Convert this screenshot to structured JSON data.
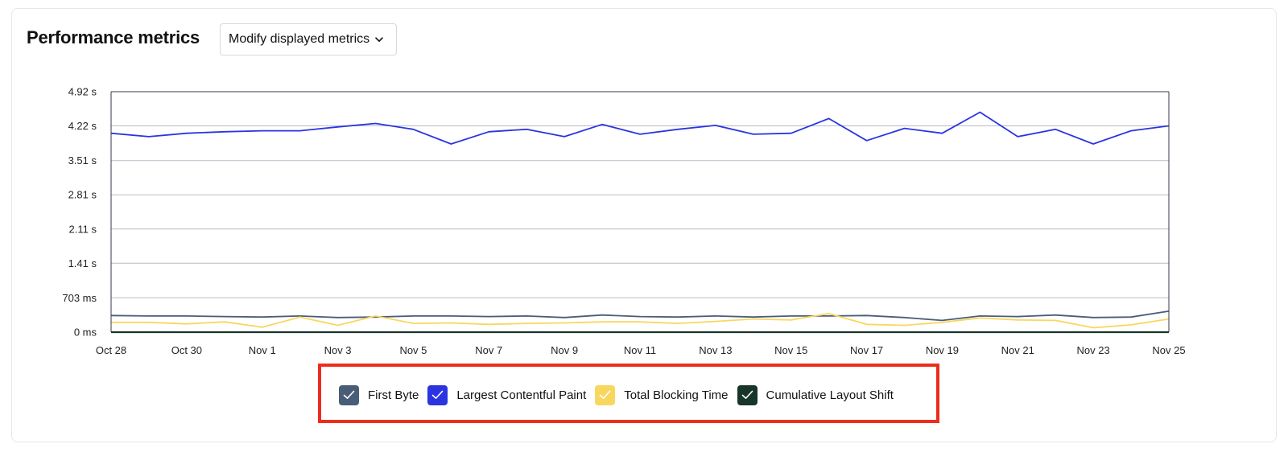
{
  "header": {
    "title": "Performance metrics",
    "modify_button": "Modify displayed metrics"
  },
  "legend": {
    "items": [
      {
        "label": "First Byte",
        "color": "#4a5d78",
        "checked": true,
        "icon": "check-icon"
      },
      {
        "label": "Largest Contentful Paint",
        "color": "#2b34e0",
        "checked": true,
        "icon": "check-icon"
      },
      {
        "label": "Total Blocking Time",
        "color": "#f9d75e",
        "checked": true,
        "icon": "check-icon"
      },
      {
        "label": "Cumulative Layout Shift",
        "color": "#19352a",
        "checked": true,
        "icon": "check-icon"
      }
    ]
  },
  "chart_data": {
    "type": "line",
    "ylim": [
      0,
      4.92
    ],
    "ytick_labels": [
      "0 ms",
      "703 ms",
      "1.41 s",
      "2.11 s",
      "2.81 s",
      "3.51 s",
      "4.22 s",
      "4.92 s"
    ],
    "ytick_values": [
      0,
      0.703,
      1.41,
      2.11,
      2.81,
      3.51,
      4.22,
      4.92
    ],
    "x": [
      "Oct 28",
      "Oct 29",
      "Oct 30",
      "Oct 31",
      "Nov 1",
      "Nov 2",
      "Nov 3",
      "Nov 4",
      "Nov 5",
      "Nov 6",
      "Nov 7",
      "Nov 8",
      "Nov 9",
      "Nov 10",
      "Nov 11",
      "Nov 12",
      "Nov 13",
      "Nov 14",
      "Nov 15",
      "Nov 16",
      "Nov 17",
      "Nov 18",
      "Nov 19",
      "Nov 20",
      "Nov 21",
      "Nov 22",
      "Nov 23",
      "Nov 24",
      "Nov 25"
    ],
    "xtick_labels": [
      "Oct 28",
      "Oct 30",
      "Nov 1",
      "Nov 3",
      "Nov 5",
      "Nov 7",
      "Nov 9",
      "Nov 11",
      "Nov 13",
      "Nov 15",
      "Nov 17",
      "Nov 19",
      "Nov 21",
      "Nov 23",
      "Nov 25"
    ],
    "grid": true,
    "series": [
      {
        "name": "First Byte",
        "color": "#4a5d78",
        "values": [
          0.34,
          0.33,
          0.33,
          0.32,
          0.31,
          0.33,
          0.3,
          0.31,
          0.33,
          0.33,
          0.32,
          0.33,
          0.3,
          0.35,
          0.32,
          0.31,
          0.33,
          0.31,
          0.33,
          0.33,
          0.34,
          0.3,
          0.24,
          0.33,
          0.32,
          0.35,
          0.3,
          0.31,
          0.43
        ]
      },
      {
        "name": "Largest Contentful Paint",
        "color": "#2b34e0",
        "values": [
          4.07,
          4.0,
          4.07,
          4.1,
          4.12,
          4.12,
          4.2,
          4.27,
          4.15,
          3.85,
          4.1,
          4.15,
          4.0,
          4.25,
          4.05,
          4.15,
          4.23,
          4.05,
          4.07,
          4.37,
          3.92,
          4.17,
          4.07,
          4.5,
          4.0,
          4.15,
          3.85,
          4.12,
          4.22
        ]
      },
      {
        "name": "Total Blocking Time",
        "color": "#f9d75e",
        "values": [
          0.2,
          0.2,
          0.17,
          0.21,
          0.1,
          0.31,
          0.14,
          0.33,
          0.18,
          0.19,
          0.16,
          0.18,
          0.19,
          0.21,
          0.21,
          0.18,
          0.22,
          0.27,
          0.25,
          0.38,
          0.16,
          0.14,
          0.2,
          0.29,
          0.25,
          0.24,
          0.09,
          0.15,
          0.27
        ]
      },
      {
        "name": "Cumulative Layout Shift",
        "color": "#19352a",
        "values": [
          0,
          0,
          0,
          0,
          0,
          0,
          0,
          0,
          0,
          0,
          0,
          0,
          0,
          0,
          0,
          0,
          0,
          0,
          0,
          0,
          0,
          0,
          0,
          0,
          0,
          0,
          0,
          0,
          0
        ]
      }
    ]
  }
}
